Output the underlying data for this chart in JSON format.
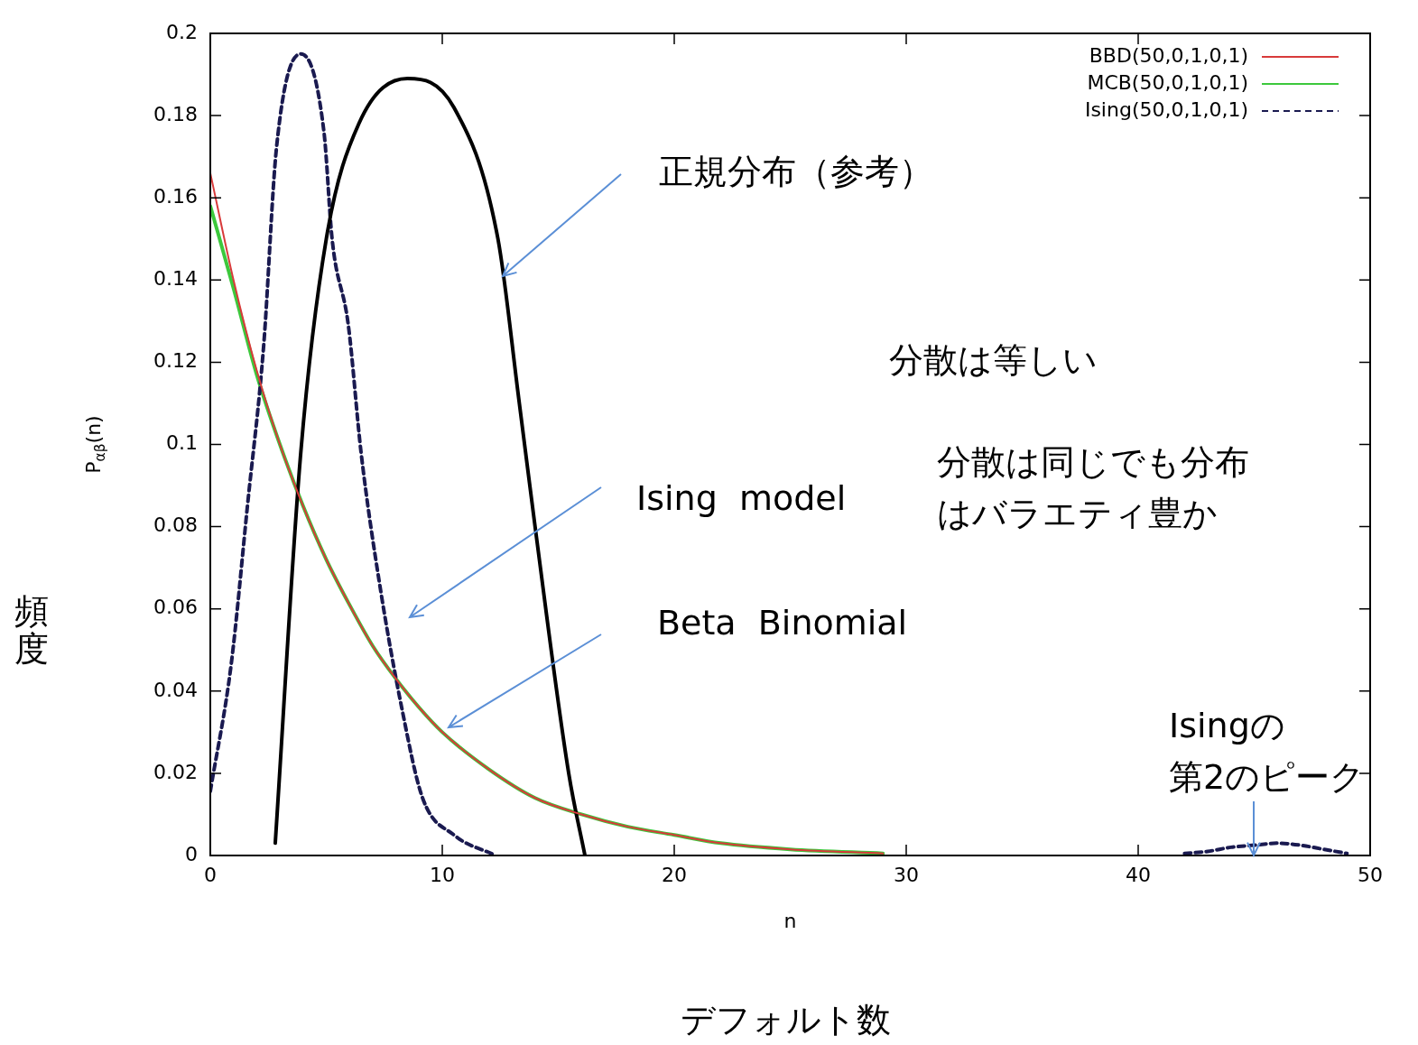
{
  "chart_data": {
    "type": "line",
    "xlabel": "n",
    "ylabel": "P$_{αβ}$(n)",
    "xlim": [
      0,
      50
    ],
    "ylim": [
      0,
      0.2
    ],
    "xticks": [
      0,
      10,
      20,
      30,
      40,
      50
    ],
    "yticks": [
      0,
      0.02,
      0.04,
      0.06,
      0.08,
      0.1,
      0.12,
      0.14,
      0.16,
      0.18,
      0.2
    ],
    "legend": "top right",
    "marker": "none",
    "series": [
      {
        "name": "BBD(50,0,1,0,1)",
        "color": "#d83a3a",
        "line_style": "solid",
        "x": [
          0,
          1,
          2,
          3,
          4,
          5,
          6,
          7,
          8,
          9,
          10,
          12,
          14,
          16,
          18,
          20,
          22,
          25,
          29
        ],
        "values": [
          0.166,
          0.14,
          0.118,
          0.1,
          0.085,
          0.072,
          0.061,
          0.051,
          0.043,
          0.036,
          0.03,
          0.021,
          0.014,
          0.01,
          0.007,
          0.005,
          0.003,
          0.0015,
          0.0005
        ]
      },
      {
        "name": "MCB(50,0,1,0,1)",
        "color": "#3cc83c",
        "line_style": "solid",
        "x": [
          0,
          1,
          2,
          3,
          4,
          5,
          6,
          7,
          8,
          9,
          10,
          12,
          14,
          16,
          18,
          20,
          22,
          25,
          29
        ],
        "values": [
          0.158,
          0.138,
          0.117,
          0.1,
          0.085,
          0.072,
          0.061,
          0.051,
          0.043,
          0.036,
          0.03,
          0.021,
          0.014,
          0.01,
          0.007,
          0.005,
          0.003,
          0.0015,
          0.0005
        ]
      },
      {
        "name": "Ising(50,0,1,0,1)",
        "color": "#1a1a50",
        "line_style": "dashed",
        "x": [
          0,
          0.9,
          1.6,
          2.3,
          2.85,
          3.9,
          4.9,
          5.25,
          5.95,
          6.5,
          7.3,
          8.25,
          9.15,
          10.5,
          12.3,
          27,
          42,
          43,
          44,
          45,
          46,
          47,
          48,
          49
        ],
        "values": [
          0.0156,
          0.0465,
          0.085,
          0.124,
          0.172,
          0.195,
          0.176,
          0.15,
          0.129,
          0.098,
          0.066,
          0.036,
          0.014,
          0.005,
          0,
          null,
          0.0005,
          0.001,
          0.002,
          0.0025,
          0.003,
          0.0025,
          0.0015,
          0.0005
        ]
      },
      {
        "color": "#000000",
        "line_style": "solid",
        "x": [
          2.8,
          3.9,
          5.0,
          6.4,
          8.5,
          10.5,
          12.4,
          13.3,
          14.0,
          15.45,
          16.15
        ],
        "values": [
          0.003,
          0.098,
          0.15,
          0.178,
          0.189,
          0.182,
          0.15,
          0.111,
          0.08,
          0.02,
          0
        ]
      }
    ],
    "annotations": [
      {
        "text": "正規分布（参考）",
        "x": 12.6,
        "y": 0.141
      },
      "Ising  model",
      "Beta  Binomial",
      "Isingの第2のピーク",
      "分散は等しい",
      "分散は同じでも分布はバラエティ豊か",
      "頻度",
      "デフォルト数"
    ]
  }
}
